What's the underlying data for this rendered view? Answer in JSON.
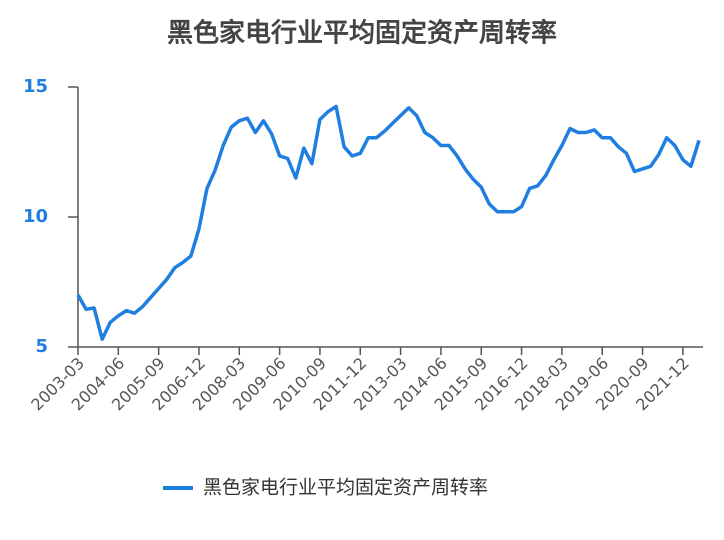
{
  "chart_data": {
    "type": "line",
    "title": "黑色家电行业平均固定资产周转率",
    "categories": [
      "2003-03",
      null,
      null,
      null,
      null,
      "2004-06",
      null,
      null,
      null,
      null,
      "2005-09",
      null,
      null,
      null,
      null,
      "2006-12",
      null,
      null,
      null,
      null,
      "2008-03",
      null,
      null,
      null,
      null,
      "2009-06",
      null,
      null,
      null,
      null,
      "2010-09",
      null,
      null,
      null,
      null,
      "2011-12",
      null,
      null,
      null,
      null,
      "2013-03",
      null,
      null,
      null,
      null,
      "2014-06",
      null,
      null,
      null,
      null,
      "2015-09",
      null,
      null,
      null,
      null,
      "2016-12",
      null,
      null,
      null,
      null,
      "2018-03",
      null,
      null,
      null,
      null,
      "2019-06",
      null,
      null,
      null,
      null,
      "2020-09",
      null,
      null,
      null,
      null,
      "2021-12",
      null,
      null
    ],
    "series": [
      {
        "name": "黑色家电行业平均固定资产周转率",
        "color": "#1f7fe0",
        "values": [
          7.0,
          6.45,
          6.5,
          5.3,
          5.95,
          6.2,
          6.4,
          6.3,
          6.55,
          6.9,
          7.25,
          7.6,
          8.05,
          8.25,
          8.5,
          9.55,
          11.1,
          11.8,
          12.75,
          13.45,
          13.7,
          13.8,
          13.25,
          13.7,
          13.2,
          12.35,
          12.25,
          11.5,
          12.65,
          12.05,
          13.75,
          14.05,
          14.25,
          12.7,
          12.35,
          12.45,
          13.05,
          13.05,
          13.3,
          13.6,
          13.9,
          14.2,
          13.9,
          13.25,
          13.05,
          12.75,
          12.75,
          12.35,
          11.85,
          11.45,
          11.15,
          10.5,
          10.2,
          10.2,
          10.2,
          10.4,
          11.1,
          11.2,
          11.6,
          12.2,
          12.75,
          13.4,
          13.25,
          13.25,
          13.35,
          13.05,
          13.05,
          12.7,
          12.45,
          11.75,
          11.85,
          11.95,
          12.4,
          13.05,
          12.75,
          12.2,
          11.95,
          12.95
        ]
      }
    ],
    "ylim": [
      5,
      15
    ],
    "yticks": [
      5,
      10,
      15
    ],
    "grid": false,
    "legend": "bottom"
  }
}
